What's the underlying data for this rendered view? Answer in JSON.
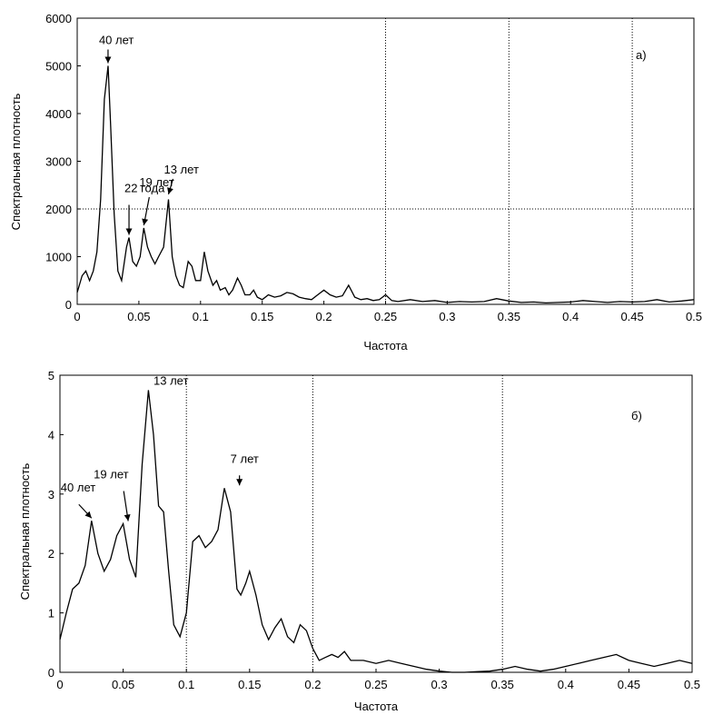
{
  "chart_data": [
    {
      "type": "line",
      "panel_label": "а)",
      "xlabel": "Частота",
      "ylabel": "Спектральная плотность",
      "xlim": [
        0,
        0.5
      ],
      "ylim": [
        0,
        6000
      ],
      "x_ticks": [
        0,
        0.05,
        0.1,
        0.15,
        0.2,
        0.25,
        0.3,
        0.35,
        0.4,
        0.45,
        0.5
      ],
      "x_tick_labels": [
        "0",
        "0.05",
        "0.1",
        "0.15",
        "0.2",
        "0.25",
        "0.3",
        "0.35",
        "0.4",
        "0.45",
        "0.5"
      ],
      "y_ticks": [
        0,
        1000,
        2000,
        3000,
        4000,
        5000,
        6000
      ],
      "y_tick_labels": [
        "0",
        "1000",
        "2000",
        "3000",
        "4000",
        "5000",
        "6000"
      ],
      "grid": {
        "vertical_dotted_at": [
          0.25,
          0.35,
          0.45
        ],
        "horizontal_dotted_at": [
          2000
        ]
      },
      "annotations": [
        {
          "text": "40 лет",
          "x": 0.025,
          "y": 5000
        },
        {
          "text": "22 года",
          "x": 0.042,
          "y": 1400
        },
        {
          "text": "19 лет",
          "x": 0.054,
          "y": 1600
        },
        {
          "text": "13 лет",
          "x": 0.074,
          "y": 2250
        }
      ],
      "series": [
        {
          "x": [
            0,
            0.004,
            0.007,
            0.01,
            0.013,
            0.016,
            0.019,
            0.022,
            0.025,
            0.027,
            0.03,
            0.033,
            0.036,
            0.04,
            0.042,
            0.045,
            0.048,
            0.051,
            0.054,
            0.057,
            0.06,
            0.063,
            0.066,
            0.07,
            0.074,
            0.077,
            0.08,
            0.083,
            0.086,
            0.09,
            0.093,
            0.096,
            0.1,
            0.103,
            0.106,
            0.11,
            0.113,
            0.116,
            0.12,
            0.123,
            0.126,
            0.13,
            0.133,
            0.136,
            0.14,
            0.143,
            0.146,
            0.15,
            0.155,
            0.16,
            0.165,
            0.17,
            0.175,
            0.18,
            0.185,
            0.19,
            0.195,
            0.2,
            0.205,
            0.21,
            0.215,
            0.22,
            0.225,
            0.23,
            0.235,
            0.24,
            0.245,
            0.25,
            0.255,
            0.26,
            0.27,
            0.28,
            0.29,
            0.3,
            0.31,
            0.32,
            0.33,
            0.34,
            0.35,
            0.36,
            0.37,
            0.38,
            0.39,
            0.4,
            0.41,
            0.42,
            0.43,
            0.44,
            0.45,
            0.46,
            0.47,
            0.48,
            0.49,
            0.5
          ],
          "y": [
            250,
            600,
            700,
            500,
            700,
            1100,
            2200,
            4300,
            5000,
            3800,
            1900,
            700,
            500,
            1200,
            1400,
            900,
            800,
            1000,
            1600,
            1200,
            1000,
            850,
            1000,
            1200,
            2200,
            1000,
            600,
            400,
            350,
            900,
            800,
            500,
            500,
            1100,
            700,
            400,
            500,
            300,
            350,
            200,
            300,
            550,
            400,
            200,
            200,
            300,
            150,
            100,
            200,
            150,
            180,
            250,
            220,
            150,
            120,
            100,
            200,
            300,
            200,
            150,
            180,
            400,
            150,
            100,
            120,
            80,
            100,
            200,
            80,
            60,
            100,
            60,
            80,
            40,
            60,
            50,
            60,
            120,
            70,
            40,
            50,
            30,
            40,
            50,
            80,
            60,
            40,
            60,
            50,
            60,
            100,
            50,
            70,
            100
          ]
        }
      ]
    },
    {
      "type": "line",
      "panel_label": "б)",
      "xlabel": "Частота",
      "ylabel": "Спектральная плотность",
      "xlim": [
        0,
        0.5
      ],
      "ylim": [
        0,
        5
      ],
      "x_ticks": [
        0,
        0.05,
        0.1,
        0.15,
        0.2,
        0.25,
        0.3,
        0.35,
        0.4,
        0.45,
        0.5
      ],
      "x_tick_labels": [
        "0",
        "0.05",
        "0.1",
        "0.15",
        "0.2",
        "0.25",
        "0.3",
        "0.35",
        "0.4",
        "0.45",
        "0.5"
      ],
      "y_ticks": [
        0,
        1,
        2,
        3,
        4,
        5
      ],
      "y_tick_labels": [
        "0",
        "1",
        "2",
        "3",
        "4",
        "5"
      ],
      "grid": {
        "vertical_dotted_at": [
          0.1,
          0.2,
          0.35
        ],
        "horizontal_dotted_at": []
      },
      "annotations": [
        {
          "text": "40 лет",
          "x": 0.025,
          "y": 2.55
        },
        {
          "text": "19 лет",
          "x": 0.054,
          "y": 2.5
        },
        {
          "text": "13 лет",
          "x": 0.074,
          "y": 4.75
        },
        {
          "text": "7 лет",
          "x": 0.142,
          "y": 3.1
        }
      ],
      "series": [
        {
          "x": [
            0,
            0.005,
            0.01,
            0.015,
            0.02,
            0.025,
            0.03,
            0.035,
            0.04,
            0.045,
            0.05,
            0.055,
            0.06,
            0.065,
            0.07,
            0.074,
            0.078,
            0.082,
            0.086,
            0.09,
            0.095,
            0.1,
            0.105,
            0.11,
            0.115,
            0.12,
            0.125,
            0.13,
            0.135,
            0.14,
            0.143,
            0.147,
            0.15,
            0.155,
            0.16,
            0.165,
            0.17,
            0.175,
            0.18,
            0.185,
            0.19,
            0.195,
            0.2,
            0.205,
            0.21,
            0.215,
            0.22,
            0.225,
            0.23,
            0.24,
            0.25,
            0.26,
            0.27,
            0.28,
            0.29,
            0.3,
            0.31,
            0.32,
            0.33,
            0.34,
            0.35,
            0.36,
            0.37,
            0.38,
            0.39,
            0.4,
            0.41,
            0.42,
            0.43,
            0.44,
            0.45,
            0.46,
            0.47,
            0.48,
            0.49,
            0.5
          ],
          "y": [
            0.55,
            1.0,
            1.4,
            1.5,
            1.8,
            2.55,
            2.0,
            1.7,
            1.9,
            2.3,
            2.5,
            1.9,
            1.6,
            3.5,
            4.75,
            4.0,
            2.8,
            2.7,
            1.7,
            0.8,
            0.6,
            1.0,
            2.2,
            2.3,
            2.1,
            2.2,
            2.4,
            3.1,
            2.7,
            1.4,
            1.3,
            1.5,
            1.7,
            1.3,
            0.8,
            0.55,
            0.75,
            0.9,
            0.6,
            0.5,
            0.8,
            0.7,
            0.4,
            0.2,
            0.25,
            0.3,
            0.25,
            0.35,
            0.2,
            0.2,
            0.15,
            0.2,
            0.15,
            0.1,
            0.05,
            0.02,
            0.0,
            0.0,
            0.01,
            0.02,
            0.05,
            0.1,
            0.05,
            0.02,
            0.05,
            0.1,
            0.15,
            0.2,
            0.25,
            0.3,
            0.2,
            0.15,
            0.1,
            0.15,
            0.2,
            0.15
          ]
        }
      ]
    }
  ]
}
